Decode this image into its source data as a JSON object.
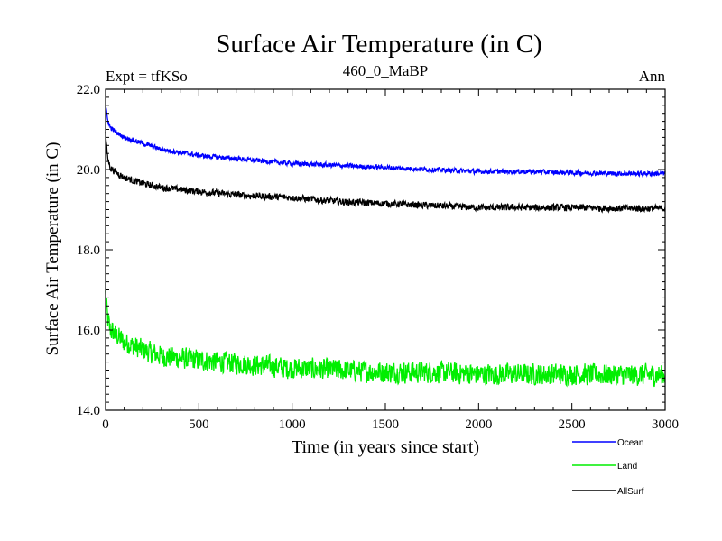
{
  "chart_data": {
    "type": "line",
    "title": "Surface Air Temperature (in C)",
    "subtitle_left": "Expt = tfKSo",
    "subtitle_center": "460_0_MaBP",
    "subtitle_right": "Ann",
    "xlabel": "Time (in years since start)",
    "ylabel": "Surface Air Temperature (in C)",
    "xlim": [
      0,
      3000
    ],
    "ylim": [
      14.0,
      22.0
    ],
    "x_ticks": [
      0,
      500,
      1000,
      1500,
      2000,
      2500,
      3000
    ],
    "x_tick_labels": [
      "0",
      "500",
      "1000",
      "1500",
      "2000",
      "2500",
      "3000"
    ],
    "y_ticks": [
      14,
      16,
      18,
      20,
      22
    ],
    "y_tick_labels": [
      "14.0",
      "16.0",
      "18.0",
      "20.0",
      "22.0"
    ],
    "legend_position": "bottom-right",
    "series": [
      {
        "name": "Ocean",
        "color": "#0000ff",
        "noise_amplitude": 0.07,
        "x": [
          0,
          10,
          25,
          50,
          100,
          200,
          300,
          500,
          750,
          1000,
          1250,
          1500,
          1750,
          2000,
          2250,
          2500,
          2750,
          3000
        ],
        "values": [
          21.6,
          21.25,
          21.05,
          20.95,
          20.8,
          20.65,
          20.5,
          20.35,
          20.25,
          20.15,
          20.1,
          20.05,
          20.0,
          19.95,
          19.95,
          19.92,
          19.9,
          19.9
        ]
      },
      {
        "name": "Land",
        "color": "#00ee00",
        "noise_amplitude": 0.32,
        "x": [
          0,
          10,
          25,
          50,
          100,
          200,
          300,
          500,
          750,
          1000,
          1250,
          1500,
          1750,
          2000,
          2250,
          2500,
          2750,
          3000
        ],
        "values": [
          16.9,
          16.3,
          16.0,
          15.9,
          15.7,
          15.5,
          15.35,
          15.25,
          15.15,
          15.05,
          15.0,
          14.95,
          14.95,
          14.9,
          14.9,
          14.9,
          14.88,
          14.88
        ]
      },
      {
        "name": "AllSurf",
        "color": "#000000",
        "noise_amplitude": 0.1,
        "x": [
          0,
          10,
          25,
          50,
          100,
          200,
          300,
          500,
          750,
          1000,
          1250,
          1500,
          1750,
          2000,
          2250,
          2500,
          2750,
          3000
        ],
        "values": [
          20.9,
          20.3,
          20.05,
          19.95,
          19.8,
          19.65,
          19.55,
          19.45,
          19.35,
          19.3,
          19.2,
          19.15,
          19.1,
          19.05,
          19.05,
          19.05,
          19.03,
          19.03
        ]
      }
    ]
  }
}
